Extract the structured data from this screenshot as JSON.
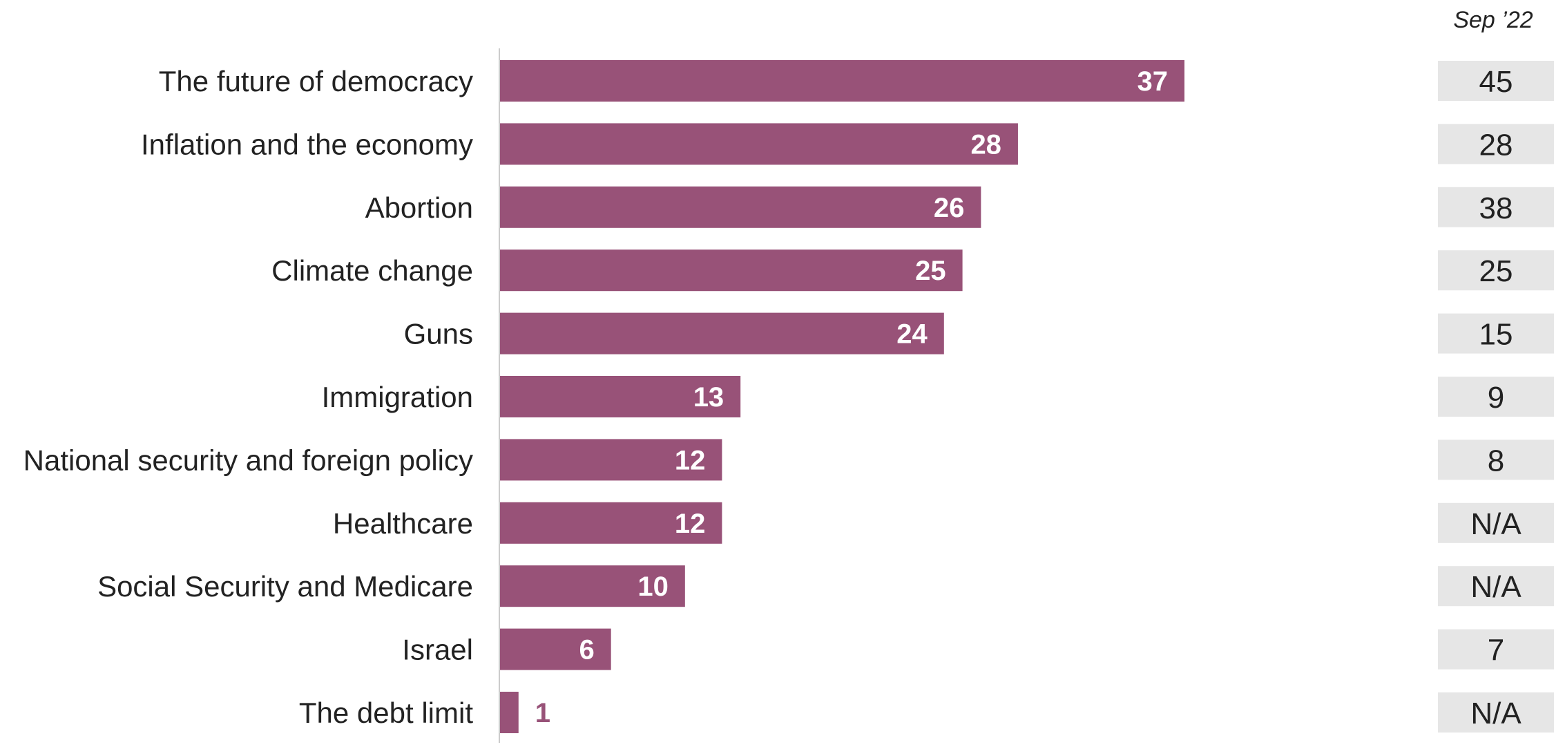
{
  "chart_data": {
    "type": "bar",
    "orientation": "horizontal",
    "categories": [
      "The future of democracy",
      "Inflation and the economy",
      "Abortion",
      "Climate change",
      "Guns",
      "Immigration",
      "National security and foreign policy",
      "Healthcare",
      "Social Security and Medicare",
      "Israel",
      "The debt limit"
    ],
    "values": [
      37,
      28,
      26,
      25,
      24,
      13,
      12,
      12,
      10,
      6,
      1
    ],
    "comparison": {
      "header": "Sep ’22",
      "values": [
        "45",
        "28",
        "38",
        "25",
        "15",
        "9",
        "8",
        "N/A",
        "N/A",
        "7",
        "N/A"
      ]
    },
    "title": "",
    "xlabel": "",
    "ylabel": "",
    "xlim": [
      0,
      37
    ],
    "grid": false,
    "legend": "none",
    "colors": {
      "bar": "#985278",
      "bar_label": "#ffffff",
      "bar_label_outside": "#985278",
      "comparison_box": "#e6e6e6",
      "axis": "#cccccc",
      "text": "#222222"
    }
  }
}
